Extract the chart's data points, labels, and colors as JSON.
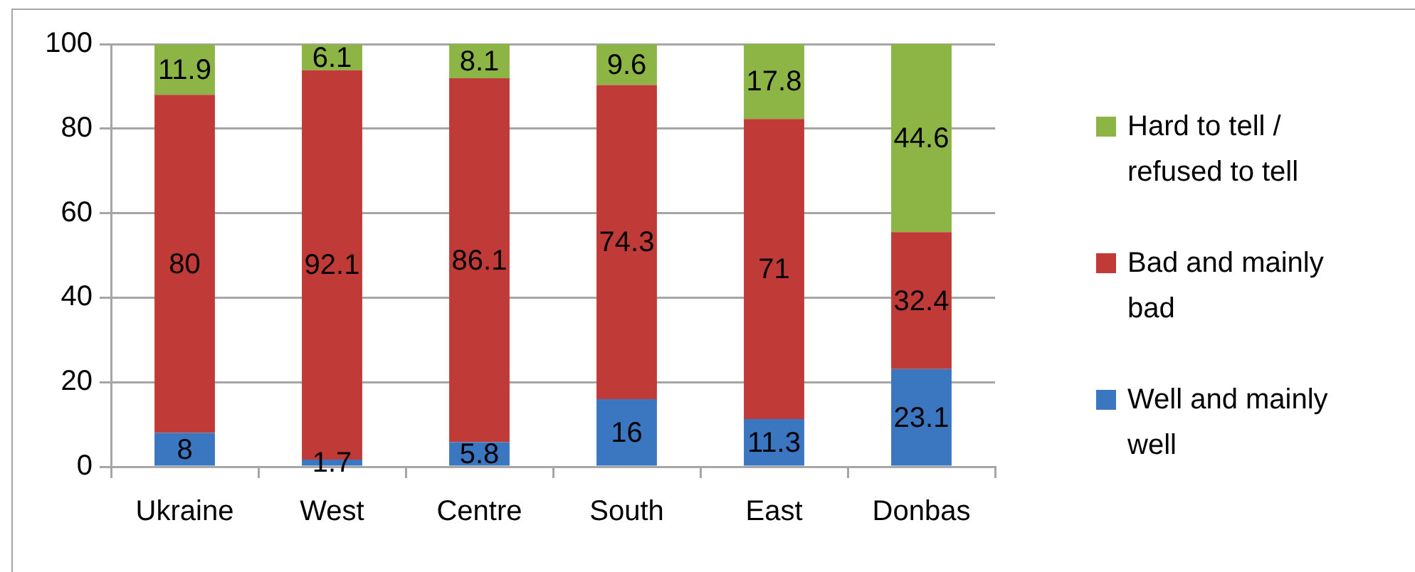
{
  "chart_data": {
    "type": "bar",
    "categories": [
      "Ukraine",
      "West",
      "Centre",
      "South",
      "East",
      "Donbas"
    ],
    "series": [
      {
        "name": "Well and mainly well",
        "color": "#3b76c1",
        "values": [
          8,
          1.7,
          5.8,
          16,
          11.3,
          23.1
        ]
      },
      {
        "name": "Bad and mainly bad",
        "color": "#c03b38",
        "values": [
          80,
          92.1,
          86.1,
          74.3,
          71,
          32.4
        ]
      },
      {
        "name": "Hard to tell / refused to tell",
        "color": "#8cb545",
        "values": [
          11.9,
          6.1,
          8.1,
          9.6,
          17.8,
          44.6
        ]
      }
    ],
    "stacked": true,
    "ylim": [
      0,
      100
    ],
    "yticks": [
      0,
      20,
      40,
      60,
      80,
      100
    ],
    "grid": "y",
    "legend": "right",
    "data_labels": true
  }
}
